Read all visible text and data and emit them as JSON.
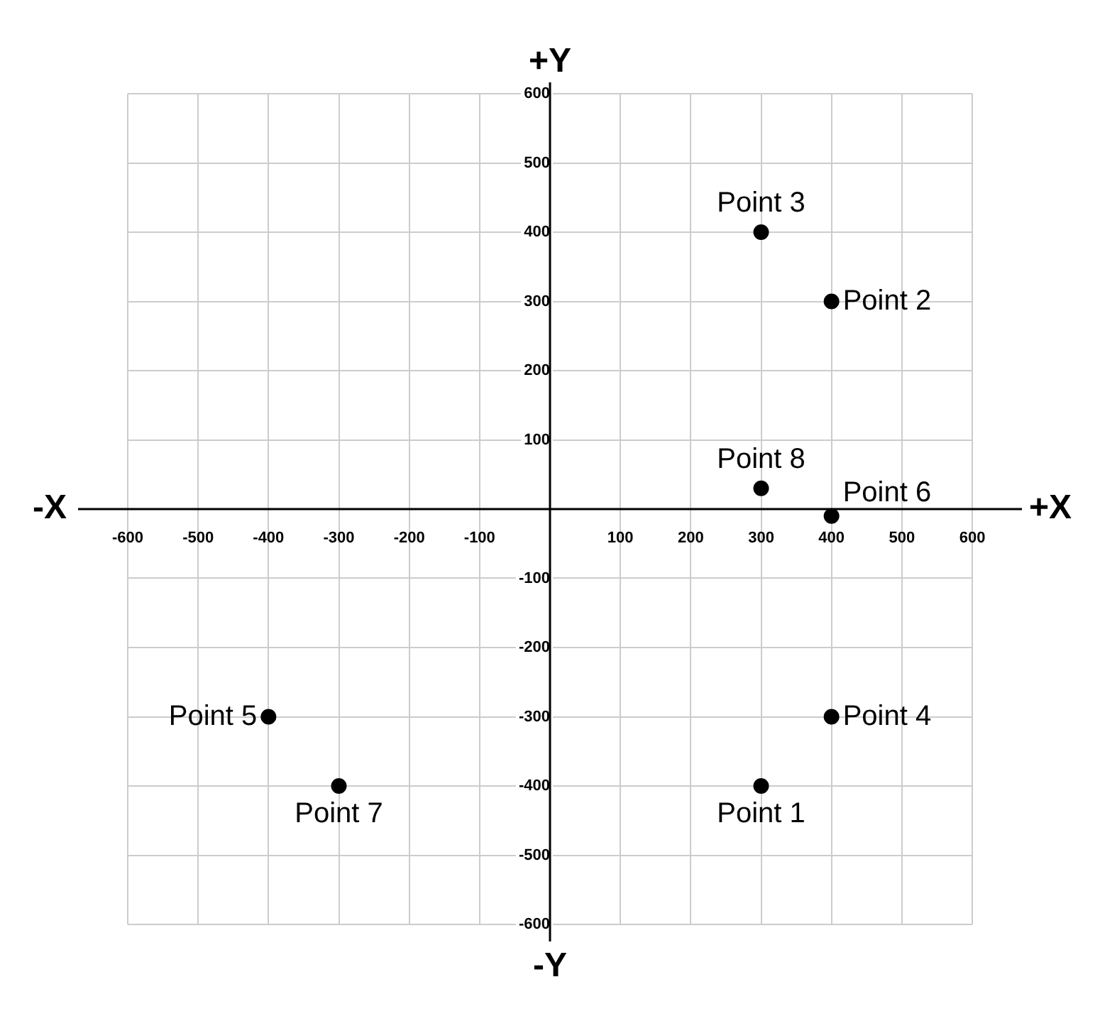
{
  "chart_data": {
    "type": "scatter",
    "annotations": [
      "+Y",
      "+X",
      "-Y",
      "-X"
    ],
    "series": [
      {
        "color": "#000000",
        "x": [
          300,
          400,
          300,
          400,
          -400,
          400,
          -300,
          300
        ],
        "values": [
          -400,
          300,
          400,
          -300,
          -300,
          -10,
          -400,
          30
        ],
        "value_labels": [
          "Point 1",
          "Point 2",
          "Point 3",
          "Point 4",
          "Point 5",
          "Point 6",
          "Point 7",
          "Point 8"
        ]
      }
    ],
    "xlim": [
      -600,
      600
    ],
    "ylim": [
      -600,
      600
    ],
    "xticks": [
      -600,
      -500,
      -400,
      -300,
      -200,
      -100,
      100,
      200,
      300,
      400,
      500,
      600
    ],
    "yticks": [
      -600,
      -500,
      -400,
      -300,
      -200,
      -100,
      100,
      200,
      300,
      400,
      500,
      600
    ],
    "grid": true,
    "legend": false,
    "marker": "circle"
  }
}
